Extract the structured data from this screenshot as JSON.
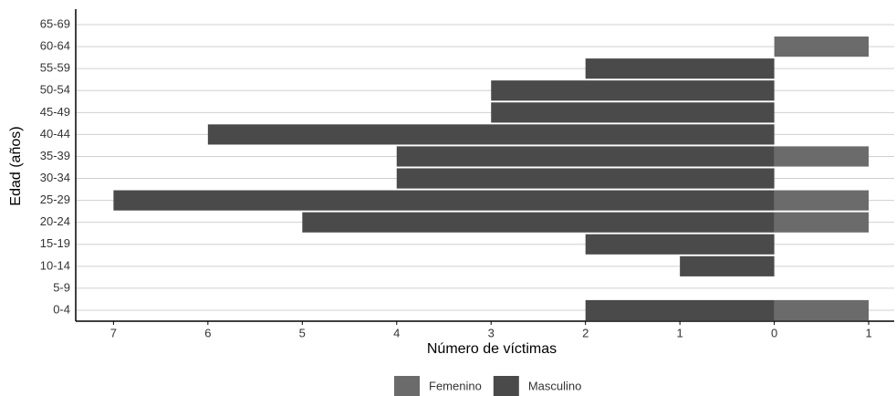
{
  "chart_data": {
    "type": "bar",
    "orientation": "horizontal",
    "ylabel": "Edad (años)",
    "xlabel": "Número de víctimas",
    "categories": [
      "0-4",
      "5-9",
      "10-14",
      "15-19",
      "20-24",
      "25-29",
      "30-34",
      "35-39",
      "40-44",
      "45-49",
      "50-54",
      "55-59",
      "60-64",
      "65-69"
    ],
    "series": [
      {
        "name": "Femenino",
        "color": "#6b6b6b",
        "values": [
          1,
          0,
          0,
          0,
          1,
          1,
          0,
          1,
          0,
          0,
          0,
          0,
          1,
          0
        ]
      },
      {
        "name": "Masculino",
        "color": "#4a4a4a",
        "values": [
          -2,
          0,
          -1,
          -2,
          -5,
          -7,
          -4,
          -4,
          -6,
          -3,
          -3,
          -2,
          0,
          0
        ]
      }
    ],
    "xlim": [
      -7.4,
      1.27
    ],
    "xticks": [
      {
        "value": -7,
        "label": "7"
      },
      {
        "value": -6,
        "label": "6"
      },
      {
        "value": -5,
        "label": "5"
      },
      {
        "value": -4,
        "label": "4"
      },
      {
        "value": -3,
        "label": "3"
      },
      {
        "value": -2,
        "label": "2"
      },
      {
        "value": -1,
        "label": "1"
      },
      0,
      1
    ],
    "grid": true,
    "legend": "bottom"
  }
}
